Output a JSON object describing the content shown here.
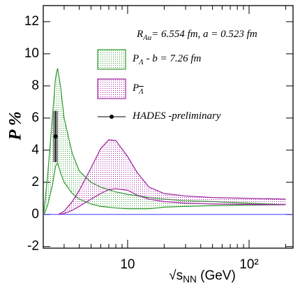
{
  "chart_data": {
    "type": "band",
    "y_label": "P %",
    "x_label": [
      {
        "text": "√s"
      },
      {
        "text": "NN",
        "sub": true
      },
      {
        "text": " (GeV)"
      }
    ],
    "annotation": [
      {
        "text": "R"
      },
      {
        "text": "Au",
        "sub": true
      },
      {
        "text": "= 6.554 fm, a = 0.523 fm"
      }
    ],
    "log_x": true,
    "xlim": [
      2.02,
      230
    ],
    "ylim": [
      -2.1,
      13
    ],
    "xticks": [
      10,
      {
        "value": 100,
        "label": "10²"
      }
    ],
    "xminor": [
      3,
      4,
      5,
      6,
      7,
      8,
      9,
      20,
      30,
      40,
      50,
      60,
      70,
      80,
      90,
      200
    ],
    "yticks": [
      -2,
      0,
      2,
      4,
      6,
      8,
      10,
      12
    ],
    "series": [
      {
        "legend": [
          {
            "text": "P"
          },
          {
            "text": "Λ",
            "sub": true
          },
          {
            "text": " - b = 7.26 fm"
          }
        ],
        "color": "#2e9a2e",
        "x": [
          2.05,
          2.2,
          2.4,
          2.55,
          2.65,
          2.8,
          3,
          3.5,
          4,
          5,
          6,
          8,
          10,
          15,
          20,
          30,
          50,
          100,
          200
        ],
        "upper": [
          0.2,
          2.5,
          6,
          8.5,
          9.1,
          8,
          6,
          3.8,
          2.7,
          2,
          1.7,
          1.4,
          1.25,
          1.05,
          0.95,
          0.85,
          0.8,
          0.7,
          0.6
        ],
        "lower": [
          0,
          0.6,
          1.8,
          3.0,
          3.2,
          2.6,
          2,
          1.3,
          0.95,
          0.65,
          0.5,
          0.4,
          0.35,
          0.35,
          0.45,
          0.5,
          0.55,
          0.58,
          0.6
        ]
      },
      {
        "legend": [
          {
            "text": "P"
          },
          {
            "text": "Λ",
            "sub": true,
            "overline": true
          }
        ],
        "color": "#a020a0",
        "x": [
          2.7,
          3,
          3.5,
          4,
          5,
          6,
          7,
          8,
          10,
          12,
          15,
          20,
          30,
          50,
          100,
          200
        ],
        "upper": [
          0,
          0.2,
          0.8,
          1.5,
          2.9,
          4.1,
          4.65,
          4.6,
          3.6,
          2.6,
          1.7,
          1.3,
          1.15,
          1.05,
          1.0,
          0.95
        ],
        "lower": [
          0,
          0.05,
          0.25,
          0.5,
          0.95,
          1.3,
          1.55,
          1.6,
          1.5,
          1.2,
          0.95,
          0.8,
          0.7,
          0.65,
          0.62,
          0.6
        ]
      }
    ],
    "points": {
      "legend": [
        {
          "text": "HADES -preliminary"
        }
      ],
      "color": "#000000",
      "x": [
        2.55
      ],
      "y": [
        4.85
      ],
      "err": [
        1.6
      ]
    },
    "zero_line_color": "#3a3aff"
  }
}
